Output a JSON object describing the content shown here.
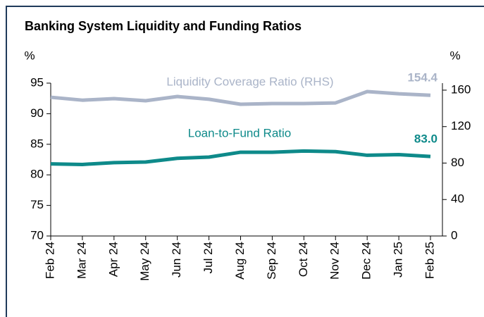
{
  "chart_data": {
    "type": "line",
    "title": "Banking System Liquidity and Funding Ratios",
    "ylabel": "%",
    "y2label": "%",
    "categories": [
      "Feb 24",
      "Mar 24",
      "Apr 24",
      "May 24",
      "Jun 24",
      "Jul 24",
      "Aug 24",
      "Sep 24",
      "Oct 24",
      "Nov 24",
      "Dec 24",
      "Jan 25",
      "Feb 25"
    ],
    "series": [
      {
        "name": "Liquidity Coverage Ratio (RHS)",
        "color": "#aab4c8",
        "axis": "y2",
        "values": [
          152.2,
          149,
          150.7,
          148.4,
          153,
          150,
          144.5,
          145.3,
          145.3,
          146,
          158.4,
          156,
          154.4
        ],
        "value_labels": [
          null,
          null,
          null,
          null,
          null,
          null,
          null,
          null,
          null,
          null,
          null,
          null,
          "154.4"
        ]
      },
      {
        "name": "Loan-to-Fund Ratio",
        "color": "#0e8a8a",
        "values": [
          81.8,
          81.7,
          82.0,
          82.1,
          82.7,
          82.9,
          83.7,
          83.7,
          83.9,
          83.8,
          83.2,
          83.3,
          83.0
        ],
        "value_labels": [
          null,
          null,
          null,
          null,
          null,
          null,
          null,
          null,
          null,
          null,
          null,
          null,
          "83.0"
        ]
      }
    ],
    "ylim": [
      70,
      95
    ],
    "yticks": [
      70,
      75,
      80,
      85,
      90,
      95
    ],
    "y2lim": [
      0,
      167.7
    ],
    "y2ticks": [
      0,
      40,
      80,
      120,
      160
    ]
  }
}
